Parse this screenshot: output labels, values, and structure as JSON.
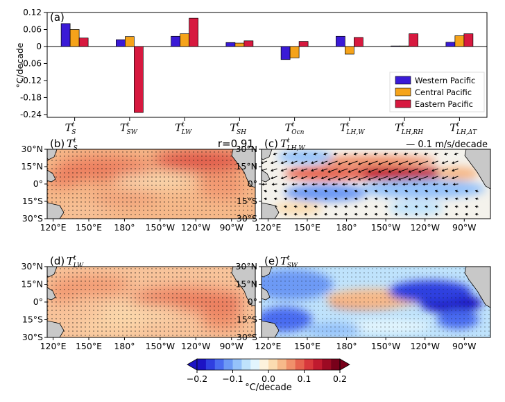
{
  "colors": {
    "western": "#3a1ad6",
    "central": "#f5a31a",
    "eastern": "#d7193f",
    "land": "#c8c8c8"
  },
  "chart_data": [
    {
      "panel": "(a)",
      "type": "bar",
      "ylabel": "°C/decade",
      "ylim": [
        -0.25,
        0.12
      ],
      "yticks": [
        0.12,
        0.06,
        0,
        -0.06,
        -0.12,
        -0.18,
        -0.24
      ],
      "ytick_labels": [
        "0.12",
        "0.06",
        "0",
        "-0.06",
        "-0.12",
        "-0.18",
        "-0.24"
      ],
      "categories": [
        {
          "base": "T",
          "sup": "t",
          "sub": "S"
        },
        {
          "base": "T",
          "sup": "t",
          "sub": "SW"
        },
        {
          "base": "T",
          "sup": "t",
          "sub": "LW"
        },
        {
          "base": "T",
          "sup": "t",
          "sub": "SH"
        },
        {
          "base": "T",
          "sup": "t",
          "sub": "Ocn"
        },
        {
          "base": "T",
          "sup": "t",
          "sub": "LH,W"
        },
        {
          "base": "T",
          "sup": "t",
          "sub": "LH,RH"
        },
        {
          "base": "T",
          "sup": "t",
          "sub": "LH,ΔT"
        }
      ],
      "series": [
        {
          "name": "Western Pacific",
          "color_key": "western",
          "values": [
            0.081,
            0.024,
            0.036,
            0.014,
            -0.046,
            0.036,
            0.002,
            0.015
          ]
        },
        {
          "name": "Central Pacific",
          "color_key": "central",
          "values": [
            0.06,
            0.035,
            0.045,
            0.012,
            -0.04,
            -0.027,
            0.002,
            0.038
          ]
        },
        {
          "name": "Eastern Pacific",
          "color_key": "eastern",
          "values": [
            0.03,
            -0.233,
            0.1,
            0.02,
            0.018,
            0.032,
            0.045,
            0.045
          ]
        }
      ],
      "legend_position": "lower-right"
    },
    {
      "panel": "(b)",
      "type": "heatmap",
      "title_base": "T",
      "title_sup": "t",
      "title_sub": "S",
      "annotation": "r=0.91",
      "xtick_labels": [
        "120°E",
        "150°E",
        "180°",
        "150°W",
        "120°W",
        "90°W"
      ],
      "ytick_labels": [
        "30°N",
        "15°N",
        "0°",
        "15°S",
        "30°S"
      ],
      "pattern": "warm"
    },
    {
      "panel": "(c)",
      "type": "heatmap",
      "title_base": "T",
      "title_sup": "t",
      "title_sub": "LH,W",
      "annotation": "— 0.1 m/s/decade",
      "xtick_labels": [
        "120°E",
        "150°E",
        "180°",
        "150°W",
        "120°W",
        "90°W"
      ],
      "ytick_labels": [
        "30°N",
        "15°N",
        "0°",
        "15°S",
        "30°S"
      ],
      "pattern": "wind"
    },
    {
      "panel": "(d)",
      "type": "heatmap",
      "title_base": "T",
      "title_sup": "t",
      "title_sub": "LW",
      "xtick_labels": [
        "120°E",
        "150°E",
        "180°",
        "150°W",
        "120°W",
        "90°W"
      ],
      "ytick_labels": [
        "30°N",
        "15°N",
        "0°",
        "15°S",
        "30°S"
      ],
      "pattern": "lw"
    },
    {
      "panel": "(e)",
      "type": "heatmap",
      "title_base": "T",
      "title_sup": "t",
      "title_sub": "SW",
      "xtick_labels": [
        "120°E",
        "150°E",
        "180°",
        "150°W",
        "120°W",
        "90°W"
      ],
      "ytick_labels": [
        "30°N",
        "15°N",
        "0°",
        "15°S",
        "30°S"
      ],
      "pattern": "sw"
    },
    {
      "panel": "colorbar",
      "type": "colorbar",
      "range": [
        -0.2,
        0.2
      ],
      "tick_labels": [
        "−0.2",
        "−0.1",
        "0.0",
        "0.1",
        "0.2"
      ],
      "label": "°C/decade",
      "colors": [
        "#1c13c4",
        "#2f3fe0",
        "#4a6cf0",
        "#6d9af5",
        "#95c2fa",
        "#bfe3fc",
        "#e2f5fd",
        "#fdf3dc",
        "#fbdcb0",
        "#f6b98a",
        "#f0906b",
        "#e6634f",
        "#d8383c",
        "#c01a2f",
        "#9c0a23",
        "#78001a"
      ]
    }
  ]
}
